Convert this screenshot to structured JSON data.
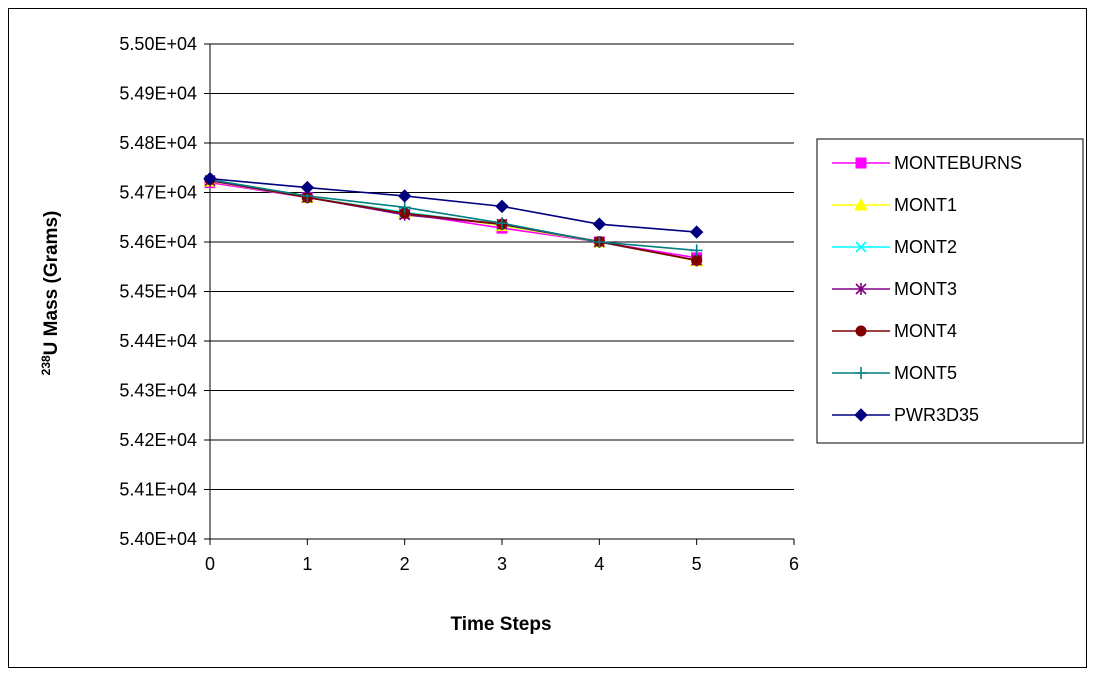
{
  "chart_data": {
    "type": "line",
    "title": "",
    "xlabel": "Time Steps",
    "ylabel_sup": "238",
    "ylabel_main": "U Mass (Grams)",
    "xlim": [
      0,
      6
    ],
    "ylim": [
      54000,
      55000
    ],
    "x_ticks": [
      "0",
      "1",
      "2",
      "3",
      "4",
      "5",
      "6"
    ],
    "y_ticks": [
      "5.40E+04",
      "5.41E+04",
      "5.42E+04",
      "5.43E+04",
      "5.44E+04",
      "5.45E+04",
      "5.46E+04",
      "5.47E+04",
      "5.48E+04",
      "5.49E+04",
      "5.50E+04"
    ],
    "grid": "horizontal",
    "legend_position": "right",
    "x": [
      0,
      1,
      2,
      3,
      4,
      5
    ],
    "series": [
      {
        "name": "MONTEBURNS",
        "color": "#FF00FF",
        "marker": "square",
        "values": [
          54720,
          54690,
          54658,
          54628,
          54600,
          54568
        ]
      },
      {
        "name": "MONT1",
        "color": "#FFFF00",
        "marker": "triangle",
        "values": [
          54723,
          54690,
          54660,
          54633,
          54600,
          54562
        ]
      },
      {
        "name": "MONT2",
        "color": "#00FFFF",
        "marker": "x",
        "values": [
          54724,
          54690,
          54660,
          54635,
          54600,
          54563
        ]
      },
      {
        "name": "MONT3",
        "color": "#800080",
        "marker": "asterisk",
        "values": [
          54724,
          54690,
          54655,
          54636,
          54600,
          54563
        ]
      },
      {
        "name": "MONT4",
        "color": "#800000",
        "marker": "circle",
        "values": [
          54726,
          54690,
          54658,
          54636,
          54601,
          54563
        ]
      },
      {
        "name": "MONT5",
        "color": "#008080",
        "marker": "plus",
        "values": [
          54726,
          54693,
          54670,
          54638,
          54600,
          54583
        ]
      },
      {
        "name": "PWR3D35",
        "color": "#000080",
        "marker": "diamond",
        "values": [
          54728,
          54710,
          54693,
          54672,
          54636,
          54620
        ]
      }
    ]
  }
}
